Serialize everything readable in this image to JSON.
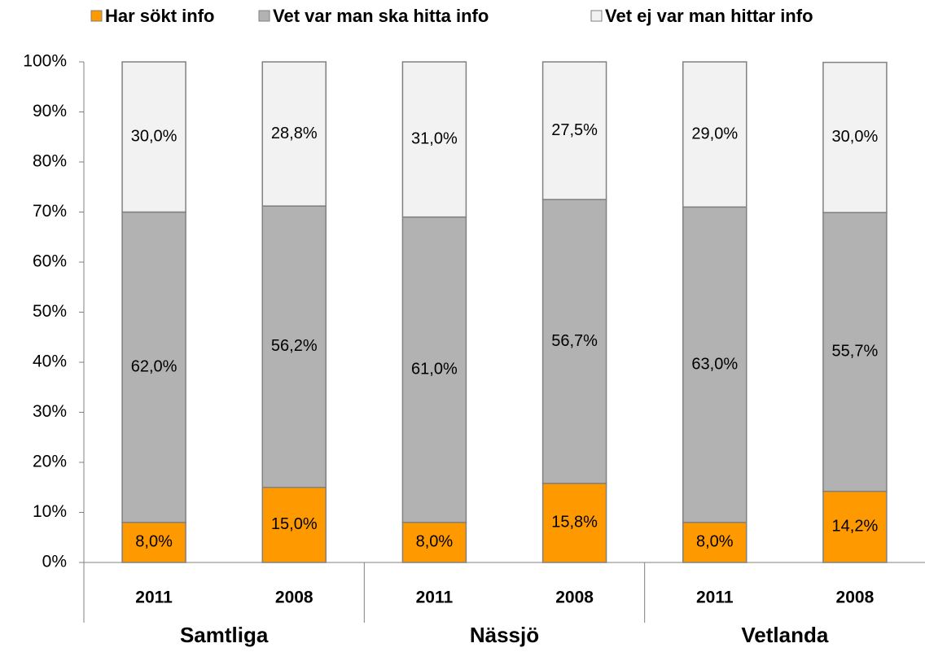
{
  "chart_data": {
    "type": "stacked_bar",
    "categories": [
      "2011",
      "2008",
      "2011",
      "2008",
      "2011",
      "2008"
    ],
    "groups": [
      "Samtliga",
      "Nässjö",
      "Vetlanda"
    ],
    "series": [
      {
        "name": "Har sökt info",
        "color": "#ff9900",
        "values": [
          8,
          15,
          8,
          15.8,
          8,
          14.2
        ],
        "value_labels": [
          "8,0%",
          "15,0%",
          "8,0%",
          "15,8%",
          "8,0%",
          "14,2%"
        ]
      },
      {
        "name": "Vet var man ska hitta info",
        "color": "#b2b2b2",
        "values": [
          62,
          56.2,
          61,
          56.7,
          63,
          55.7
        ],
        "value_labels": [
          "62,0%",
          "56,2%",
          "61,0%",
          "56,7%",
          "63,0%",
          "55,7%"
        ]
      },
      {
        "name": "Vet ej var man hittar info",
        "color": "#f2f2f2",
        "values": [
          30,
          28.8,
          31,
          27.5,
          29,
          30
        ],
        "value_labels": [
          "30,0%",
          "28,8%",
          "31,0%",
          "27,5%",
          "29,0%",
          "30,0%"
        ]
      }
    ],
    "ylim": [
      0,
      100
    ],
    "yticks": [
      {
        "value": 0,
        "label": "0%"
      },
      {
        "value": 10,
        "label": "10%"
      },
      {
        "value": 20,
        "label": "20%"
      },
      {
        "value": 30,
        "label": "30%"
      },
      {
        "value": 40,
        "label": "40%"
      },
      {
        "value": 50,
        "label": "50%"
      },
      {
        "value": 60,
        "label": "60%"
      },
      {
        "value": 70,
        "label": "70%"
      },
      {
        "value": 80,
        "label": "80%"
      },
      {
        "value": 90,
        "label": "90%"
      },
      {
        "value": 100,
        "label": "100%"
      }
    ]
  }
}
